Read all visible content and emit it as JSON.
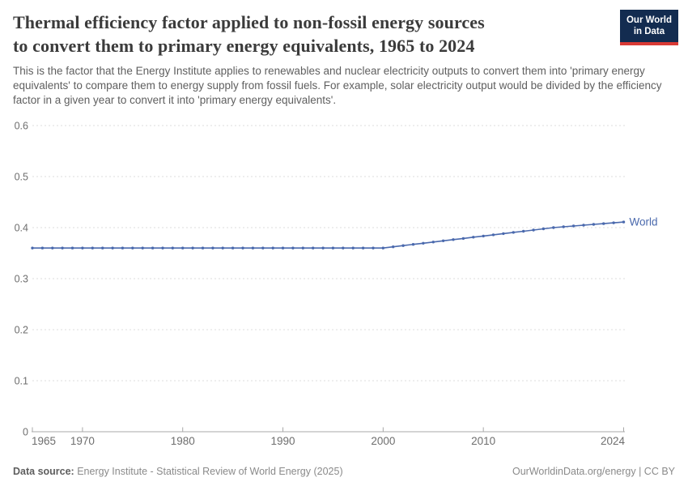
{
  "header": {
    "title_line1": "Thermal efficiency factor applied to non-fossil energy sources",
    "title_line2": "to convert them to primary energy equivalents, 1965 to 2024",
    "subtitle": "This is the factor that the Energy Institute applies to renewables and nuclear electricity outputs to convert them into 'primary energy equivalents' to compare them to energy supply from fossil fuels. For example, solar electricity output would be divided by the efficiency factor in a given year to convert it into 'primary energy equivalents'."
  },
  "logo": {
    "line1": "Our World",
    "line2": "in Data",
    "bg_color": "#132c50",
    "stripe_color": "#d93a35"
  },
  "footer": {
    "datasource_label": "Data source:",
    "datasource_value": "Energy Institute - Statistical Review of World Energy (2025)",
    "credit": "OurWorldinData.org/energy | CC BY"
  },
  "chart_data": {
    "type": "line",
    "title": "Thermal efficiency factor applied to non-fossil energy sources to convert them to primary energy equivalents, 1965 to 2024",
    "xlabel": "",
    "ylabel": "",
    "xlim": [
      1965,
      2024
    ],
    "ylim": [
      0,
      0.6
    ],
    "x_ticks": [
      1965,
      1970,
      1980,
      1990,
      2000,
      2010,
      2024
    ],
    "y_ticks": [
      0,
      0.1,
      0.2,
      0.3,
      0.4,
      0.5,
      0.6
    ],
    "grid": "horizontal-dashed",
    "legend_position": "end-of-line-label",
    "colors": {
      "line": "#4a69ad",
      "grid": "#dcdcdc",
      "axis": "#a8a8a8",
      "tick_label": "#6e6e6e"
    },
    "series": [
      {
        "name": "World",
        "color": "#4a69ad",
        "x": [
          1965,
          1966,
          1967,
          1968,
          1969,
          1970,
          1971,
          1972,
          1973,
          1974,
          1975,
          1976,
          1977,
          1978,
          1979,
          1980,
          1981,
          1982,
          1983,
          1984,
          1985,
          1986,
          1987,
          1988,
          1989,
          1990,
          1991,
          1992,
          1993,
          1994,
          1995,
          1996,
          1997,
          1998,
          1999,
          2000,
          2001,
          2002,
          2003,
          2004,
          2005,
          2006,
          2007,
          2008,
          2009,
          2010,
          2011,
          2012,
          2013,
          2014,
          2015,
          2016,
          2017,
          2018,
          2019,
          2020,
          2021,
          2022,
          2023,
          2024
        ],
        "values": [
          0.36,
          0.36,
          0.36,
          0.36,
          0.36,
          0.36,
          0.36,
          0.36,
          0.36,
          0.36,
          0.36,
          0.36,
          0.36,
          0.36,
          0.36,
          0.36,
          0.36,
          0.36,
          0.36,
          0.36,
          0.36,
          0.36,
          0.36,
          0.36,
          0.36,
          0.36,
          0.36,
          0.36,
          0.36,
          0.36,
          0.36,
          0.36,
          0.36,
          0.36,
          0.36,
          0.36,
          0.3624,
          0.3647,
          0.3671,
          0.3694,
          0.3718,
          0.3741,
          0.3765,
          0.3788,
          0.3812,
          0.3835,
          0.3859,
          0.3882,
          0.3906,
          0.3929,
          0.3953,
          0.3976,
          0.4,
          0.4016,
          0.4031,
          0.4047,
          0.4063,
          0.4078,
          0.4094,
          0.411
        ]
      }
    ]
  }
}
